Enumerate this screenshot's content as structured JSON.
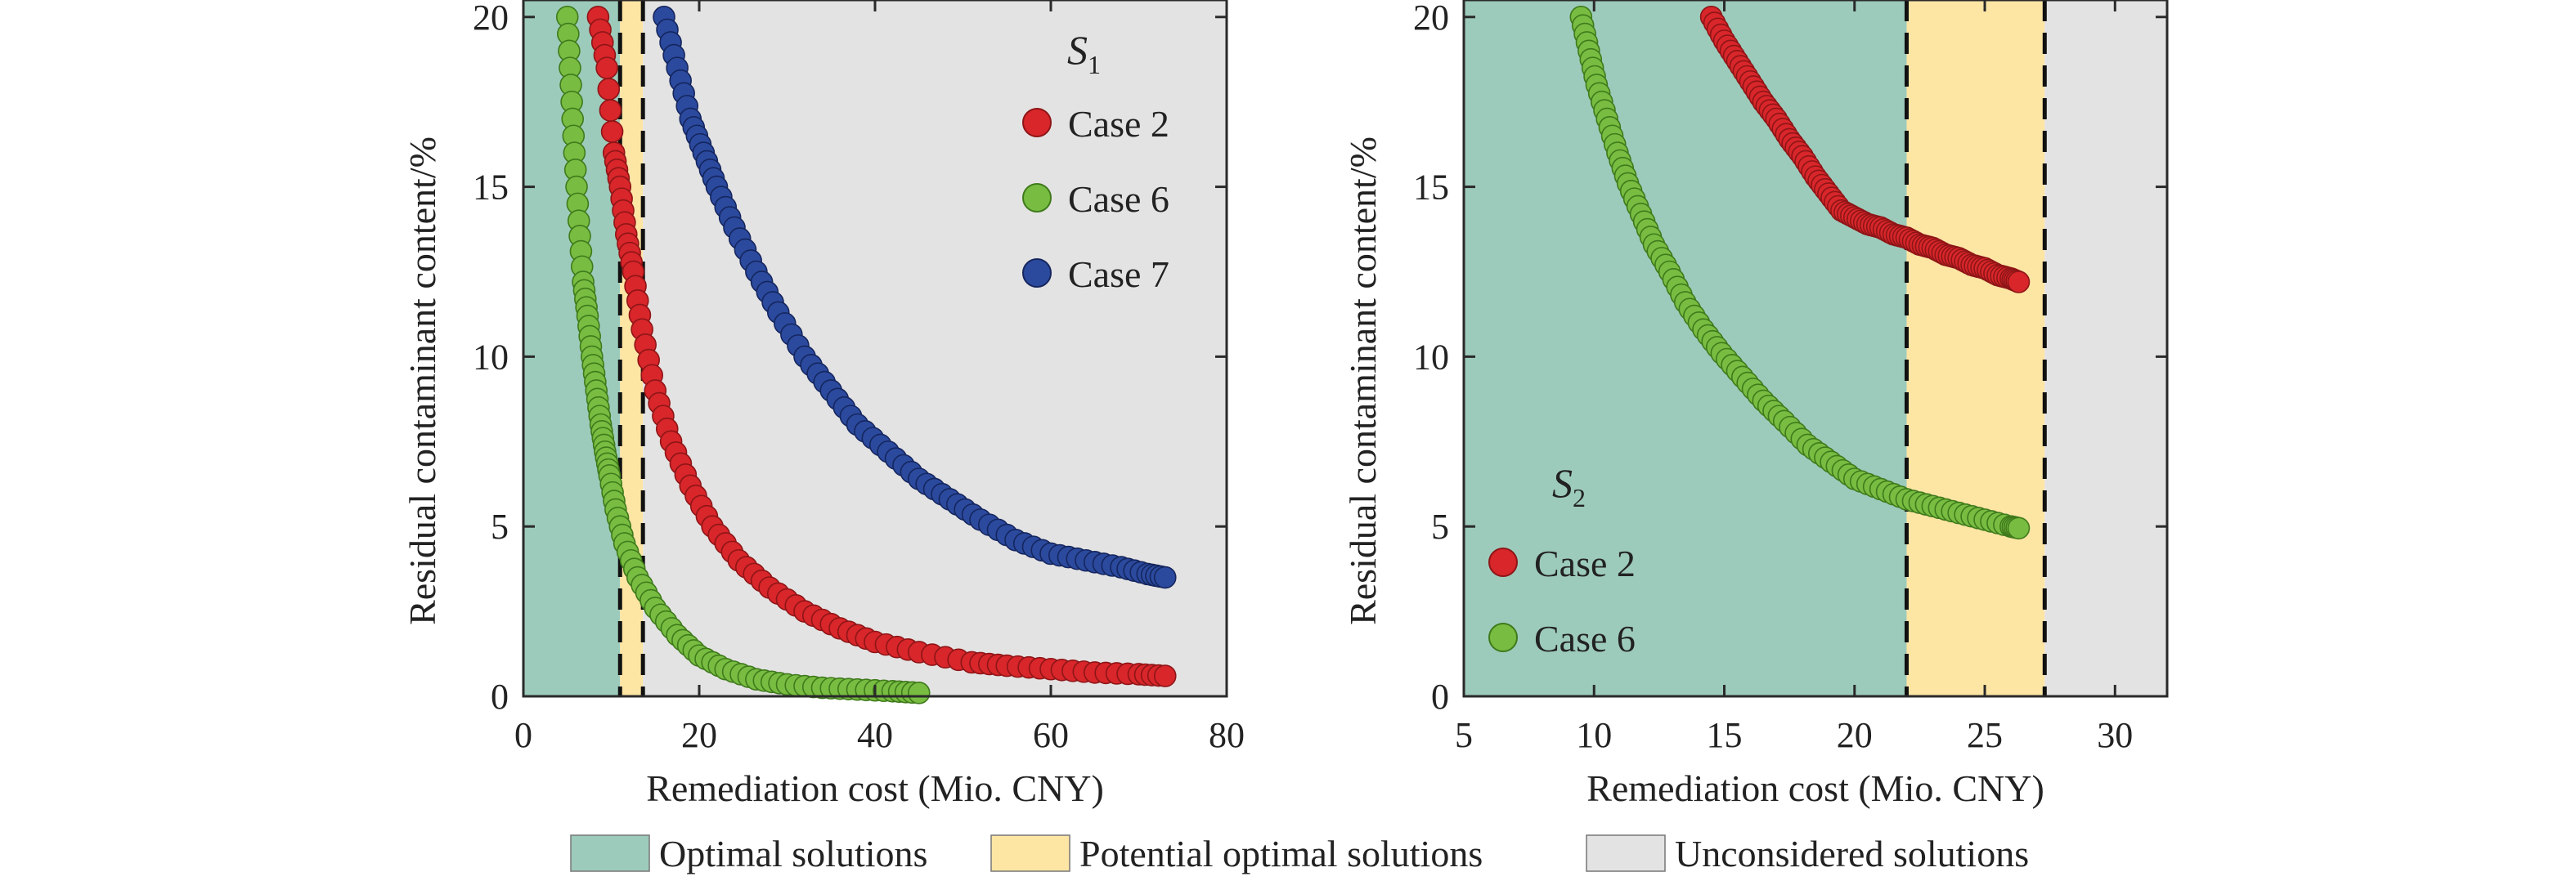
{
  "colors": {
    "optimal": "#9dcbbb",
    "potential": "#fde5a4",
    "unconsidered": "#e4e3e3",
    "frame": "#2a2a2a",
    "dashed": "#111111",
    "series_red": "#d8262a",
    "series_red_edge": "#8e1517",
    "series_green": "#78bd41",
    "series_green_edge": "#3f7a1c",
    "series_blue": "#2b4a9e",
    "series_blue_edge": "#15265e"
  },
  "legend_bottom": {
    "items": [
      {
        "label": "Optimal solutions",
        "color_key": "optimal"
      },
      {
        "label": "Potential optimal solutions",
        "color_key": "potential"
      },
      {
        "label": "Unconsidered solutions",
        "color_key": "unconsidered"
      }
    ]
  },
  "chart_data": [
    {
      "type": "scatter",
      "panel_label": "S",
      "panel_label_sub": "1",
      "xlabel": "Remediation cost (Mio. CNY)",
      "ylabel": "Residual contaminant content/%",
      "xlim": [
        0,
        80
      ],
      "ylim": [
        0,
        20.5
      ],
      "xticks": [
        0,
        20,
        40,
        60,
        80
      ],
      "yticks": [
        0,
        5,
        10,
        15,
        20
      ],
      "legend_position": "top-right",
      "regions": [
        {
          "kind": "optimal",
          "from": 0,
          "to": 11
        },
        {
          "kind": "potential",
          "from": 11,
          "to": 13.6
        },
        {
          "kind": "unconsidered",
          "from": 13.6,
          "to": 80
        }
      ],
      "dashed_lines_x": [
        11,
        13.6
      ],
      "series": [
        {
          "name": "Case 2",
          "color_key": "series_red",
          "x": [
            8.5,
            9.5,
            10.3,
            11.0,
            11.7,
            12.5,
            13.5,
            15.0,
            16.8,
            19.0,
            21.5,
            24.5,
            28.0,
            32.0,
            36.0,
            40.0,
            45.0,
            51.0,
            55.0,
            60.0,
            65.0,
            70.0,
            73.0
          ],
          "y": [
            20.0,
            18.5,
            16.0,
            15.0,
            13.6,
            12.5,
            10.8,
            9.0,
            7.5,
            6.2,
            5.0,
            4.0,
            3.2,
            2.5,
            2.0,
            1.6,
            1.3,
            1.0,
            0.9,
            0.8,
            0.7,
            0.65,
            0.6
          ]
        },
        {
          "name": "Case 6",
          "color_key": "series_green",
          "x": [
            5.0,
            5.4,
            5.8,
            6.3,
            6.8,
            7.3,
            7.8,
            8.3,
            8.8,
            9.3,
            9.8,
            10.5,
            11.5,
            13.0,
            15.0,
            17.5,
            20.0,
            23.0,
            26.5,
            30.0,
            34.0,
            38.0,
            42.0,
            45.0
          ],
          "y": [
            20.0,
            18.0,
            16.0,
            14.0,
            12.2,
            11.2,
            10.0,
            9.0,
            8.0,
            7.2,
            6.5,
            5.5,
            4.5,
            3.5,
            2.6,
            1.8,
            1.2,
            0.8,
            0.5,
            0.35,
            0.25,
            0.2,
            0.15,
            0.1
          ]
        },
        {
          "name": "Case 7",
          "color_key": "series_blue",
          "x": [
            16.0,
            17.5,
            19.0,
            20.5,
            22.0,
            24.0,
            26.5,
            29.0,
            32.0,
            35.0,
            38.0,
            41.5,
            45.0,
            48.5,
            52.0,
            56.0,
            60.0,
            64.0,
            68.0,
            71.0,
            73.0
          ],
          "y": [
            20.0,
            18.5,
            17.0,
            16.0,
            15.0,
            13.8,
            12.5,
            11.3,
            10.0,
            9.0,
            8.0,
            7.2,
            6.4,
            5.8,
            5.2,
            4.6,
            4.2,
            4.0,
            3.8,
            3.6,
            3.5
          ]
        }
      ]
    },
    {
      "type": "scatter",
      "panel_label": "S",
      "panel_label_sub": "2",
      "xlabel": "Remediation cost (Mio. CNY)",
      "ylabel": "Residual contaminant content/%",
      "xlim": [
        5,
        32
      ],
      "ylim": [
        0,
        20.5
      ],
      "xticks": [
        5,
        10,
        15,
        20,
        25,
        30
      ],
      "yticks": [
        0,
        5,
        10,
        15,
        20
      ],
      "legend_position": "bottom-left",
      "regions": [
        {
          "kind": "optimal",
          "from": 5,
          "to": 22
        },
        {
          "kind": "potential",
          "from": 22,
          "to": 27.3
        },
        {
          "kind": "unconsidered",
          "from": 27.3,
          "to": 32
        }
      ],
      "dashed_lines_x": [
        22,
        27.3
      ],
      "series": [
        {
          "name": "Case 2",
          "color_key": "series_red",
          "x": [
            14.5,
            15.0,
            15.5,
            16.0,
            16.5,
            17.0,
            17.5,
            18.0,
            18.5,
            19.0,
            19.5,
            20.0,
            20.5,
            21.0,
            21.5,
            22.0,
            22.5,
            23.0,
            23.5,
            24.0,
            24.5,
            25.0,
            25.5,
            26.0,
            26.3
          ],
          "y": [
            20.0,
            19.3,
            18.7,
            18.1,
            17.5,
            17.0,
            16.4,
            15.9,
            15.3,
            14.8,
            14.3,
            14.1,
            13.9,
            13.8,
            13.6,
            13.5,
            13.3,
            13.2,
            13.0,
            12.9,
            12.7,
            12.6,
            12.4,
            12.3,
            12.2
          ]
        },
        {
          "name": "Case 6",
          "color_key": "series_green",
          "x": [
            9.5,
            9.8,
            10.1,
            10.5,
            10.9,
            11.3,
            11.8,
            12.3,
            12.9,
            13.5,
            14.2,
            14.9,
            15.7,
            16.5,
            17.3,
            18.2,
            19.1,
            20.0,
            21.0,
            22.0,
            23.0,
            24.0,
            25.0,
            26.0,
            26.3
          ],
          "y": [
            20.0,
            19.0,
            18.0,
            17.0,
            16.0,
            15.1,
            14.2,
            13.3,
            12.5,
            11.6,
            10.8,
            10.1,
            9.4,
            8.7,
            8.1,
            7.4,
            6.9,
            6.4,
            6.1,
            5.8,
            5.6,
            5.4,
            5.2,
            5.0,
            4.95
          ]
        }
      ]
    }
  ]
}
